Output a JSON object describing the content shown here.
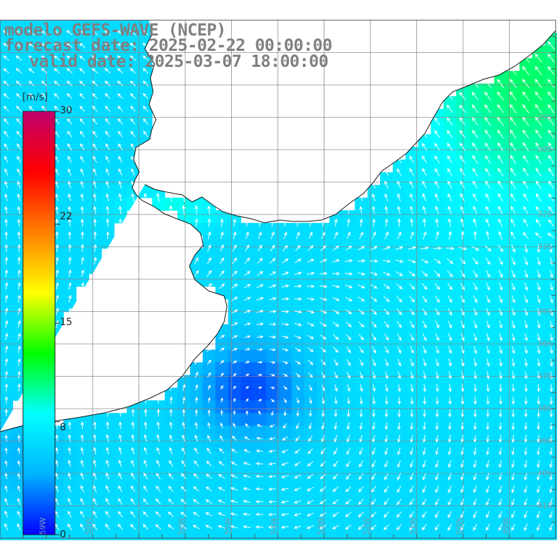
{
  "header": {
    "line1": "modelo GEFS-WAVE (NCEP)",
    "line2": "forecast date: 2025-02-22 00:00:00",
    "line3": "valid date: 2025-03-07 18:00:00"
  },
  "colorbar": {
    "unit": "[m/s]",
    "min": 0,
    "max": 30,
    "tick_labels": [
      "30",
      "22",
      "15",
      "8",
      "0"
    ],
    "tick_values": [
      30,
      22,
      15,
      8,
      0
    ],
    "colors": [
      "#0000ff",
      "#00b4ff",
      "#00ffff",
      "#00ff00",
      "#ffff00",
      "#ff8000",
      "#ff0000",
      "#c0006e"
    ]
  },
  "map": {
    "lon_range": [
      -60,
      -48
    ],
    "lat_range": [
      -42,
      -26
    ],
    "grid_step_deg": 1,
    "lat_labels": [
      "29S",
      "30S",
      "32S",
      "33S",
      "35S",
      "36S",
      "37S",
      "38S",
      "39S",
      "40S",
      "41S"
    ],
    "lat_values": [
      -29,
      -30,
      -32,
      -33,
      -35,
      -36,
      -37,
      -38,
      -39,
      -40,
      -41
    ],
    "lon_labels": [
      "59W",
      "58W",
      "56W",
      "55W",
      "54W",
      "53W",
      "52W",
      "51W",
      "50W",
      "49W"
    ],
    "lon_values": [
      -59,
      -58,
      -56,
      -55,
      -54,
      -53,
      -52,
      -51,
      -50,
      -49
    ],
    "field": "wind speed and direction"
  }
}
